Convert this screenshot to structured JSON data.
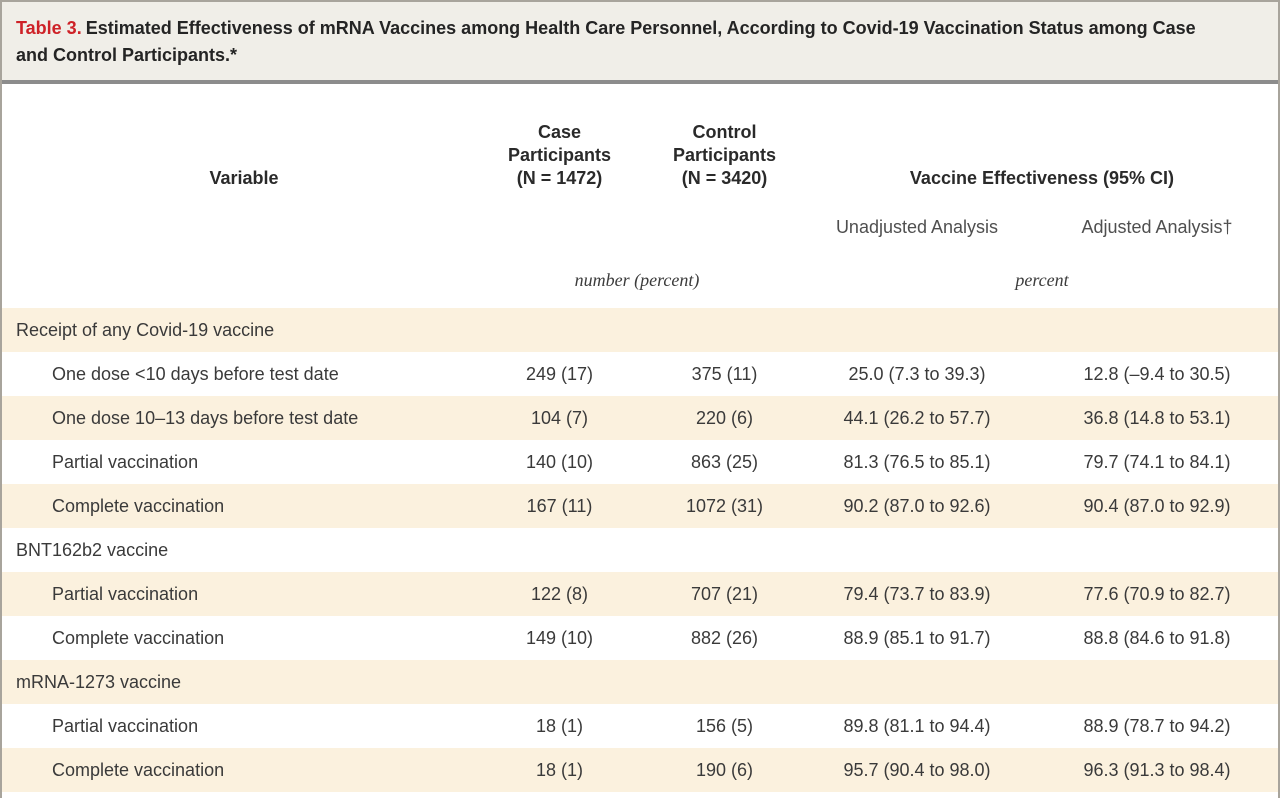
{
  "title": {
    "label": "Table 3.",
    "text": "Estimated Effectiveness of mRNA Vaccines among Health Care Personnel, According to Covid-19 Vaccination Status among Case and Control Participants.*"
  },
  "header": {
    "variable": "Variable",
    "case": "Case\nParticipants\n(N = 1472)",
    "control": "Control\nParticipants\n(N = 3420)",
    "effectiveness": "Vaccine Effectiveness (95% CI)",
    "unadjusted": "Unadjusted Analysis",
    "adjusted": "Adjusted Analysis†",
    "units_counts": "number (percent)",
    "units_effectiveness": "percent"
  },
  "colors": {
    "accent_red": "#ce2127",
    "stripe_cream": "#fbf1de",
    "title_background": "#f0eee8"
  },
  "rows": [
    {
      "type": "section",
      "label": "Receipt of any Covid-19 vaccine",
      "shade": true
    },
    {
      "type": "data",
      "label": "One dose <10 days before test date",
      "case": "249 (17)",
      "control": "375 (11)",
      "unadjusted": "25.0 (7.3 to 39.3)",
      "adjusted": "12.8 (–9.4 to 30.5)",
      "shade": false
    },
    {
      "type": "data",
      "label": "One dose 10–13 days before test date",
      "case": "104 (7)",
      "control": "220 (6)",
      "unadjusted": "44.1 (26.2 to 57.7)",
      "adjusted": "36.8 (14.8 to 53.1)",
      "shade": true
    },
    {
      "type": "data",
      "label": "Partial vaccination",
      "case": "140 (10)",
      "control": "863 (25)",
      "unadjusted": "81.3 (76.5 to 85.1)",
      "adjusted": "79.7 (74.1 to 84.1)",
      "shade": false
    },
    {
      "type": "data",
      "label": "Complete vaccination",
      "case": "167 (11)",
      "control": "1072 (31)",
      "unadjusted": "90.2 (87.0 to 92.6)",
      "adjusted": "90.4 (87.0 to 92.9)",
      "shade": true
    },
    {
      "type": "section",
      "label": "BNT162b2 vaccine",
      "shade": false
    },
    {
      "type": "data",
      "label": "Partial vaccination",
      "case": "122 (8)",
      "control": "707 (21)",
      "unadjusted": "79.4 (73.7 to 83.9)",
      "adjusted": "77.6 (70.9 to 82.7)",
      "shade": true
    },
    {
      "type": "data",
      "label": "Complete vaccination",
      "case": "149 (10)",
      "control": "882 (26)",
      "unadjusted": "88.9 (85.1 to 91.7)",
      "adjusted": "88.8 (84.6 to 91.8)",
      "shade": false
    },
    {
      "type": "section",
      "label": "mRNA-1273 vaccine",
      "shade": true
    },
    {
      "type": "data",
      "label": "Partial vaccination",
      "case": "18 (1)",
      "control": "156 (5)",
      "unadjusted": "89.8 (81.1 to 94.4)",
      "adjusted": "88.9 (78.7 to 94.2)",
      "shade": false
    },
    {
      "type": "data",
      "label": "Complete vaccination",
      "case": "18 (1)",
      "control": "190 (6)",
      "unadjusted": "95.7 (90.4 to 98.0)",
      "adjusted": "96.3 (91.3 to 98.4)",
      "shade": true
    }
  ]
}
